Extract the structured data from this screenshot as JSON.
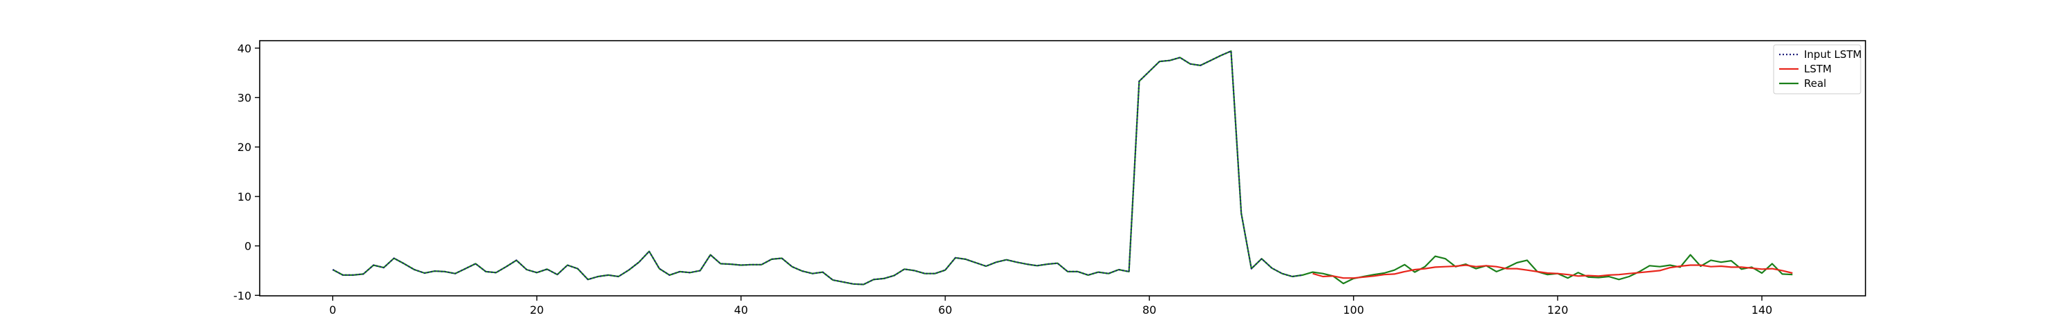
{
  "chart_data": {
    "type": "line",
    "title": "",
    "xlabel": "",
    "ylabel": "",
    "xlim": [
      -7.15,
      150.15
    ],
    "ylim": [
      -10.1,
      41.5
    ],
    "xticks": [
      0,
      20,
      40,
      60,
      80,
      100,
      120,
      140
    ],
    "yticks": [
      -10,
      0,
      10,
      20,
      30,
      40
    ],
    "grid": false,
    "legend_position": "top-right",
    "series": [
      {
        "name": "Input LSTM",
        "color": "#1f1f7a",
        "style": "dotted",
        "x": [
          0,
          1,
          2,
          3,
          4,
          5,
          6,
          7,
          8,
          9,
          10,
          11,
          12,
          13,
          14,
          15,
          16,
          17,
          18,
          19,
          20,
          21,
          22,
          23,
          24,
          25,
          26,
          27,
          28,
          29,
          30,
          31,
          32,
          33,
          34,
          35,
          36,
          37,
          38,
          39,
          40,
          41,
          42,
          43,
          44,
          45,
          46,
          47,
          48,
          49,
          50,
          51,
          52,
          53,
          54,
          55,
          56,
          57,
          58,
          59,
          60,
          61,
          62,
          63,
          64,
          65,
          66,
          67,
          68,
          69,
          70,
          71,
          72,
          73,
          74,
          75,
          76,
          77,
          78,
          79,
          80,
          81,
          82,
          83,
          84,
          85,
          86,
          87,
          88,
          89,
          90,
          91,
          92,
          93,
          94,
          95
        ],
        "y": [
          -4.8,
          -5.9,
          -5.9,
          -5.7,
          -3.9,
          -4.4,
          -2.5,
          -3.6,
          -4.8,
          -5.5,
          -5.1,
          -5.2,
          -5.6,
          -4.6,
          -3.6,
          -5.2,
          -5.4,
          -4.2,
          -2.9,
          -4.8,
          -5.4,
          -4.7,
          -5.8,
          -3.9,
          -4.6,
          -6.8,
          -6.2,
          -5.9,
          -6.2,
          -4.9,
          -3.3,
          -1.1,
          -4.6,
          -5.9,
          -5.2,
          -5.4,
          -5.0,
          -1.8,
          -3.6,
          -3.7,
          -3.9,
          -3.8,
          -3.8,
          -2.7,
          -2.5,
          -4.2,
          -5.1,
          -5.6,
          -5.3,
          -6.9,
          -7.3,
          -7.7,
          -7.8,
          -6.8,
          -6.6,
          -6.0,
          -4.7,
          -5.0,
          -5.6,
          -5.6,
          -4.9,
          -2.4,
          -2.7,
          -3.4,
          -4.1,
          -3.3,
          -2.8,
          -3.3,
          -3.7,
          -4.0,
          -3.7,
          -3.5,
          -5.2,
          -5.2,
          -5.9,
          -5.3,
          -5.6,
          -4.8,
          -5.2,
          33.3,
          35.3,
          37.3,
          37.5,
          38.1,
          36.8,
          36.5,
          37.5,
          38.5,
          39.4,
          6.6,
          -4.6,
          -2.6,
          -4.5,
          -5.6,
          -6.2,
          -5.9
        ]
      },
      {
        "name": "LSTM",
        "color": "#e8261c",
        "style": "solid",
        "x": [
          96,
          97,
          98,
          99,
          100,
          101,
          102,
          103,
          104,
          105,
          106,
          107,
          108,
          109,
          110,
          111,
          112,
          113,
          114,
          115,
          116,
          117,
          118,
          119,
          120,
          121,
          122,
          123,
          124,
          125,
          126,
          127,
          128,
          129,
          130,
          131,
          132,
          133,
          134,
          135,
          136,
          137,
          138,
          139,
          140,
          141,
          142,
          143
        ],
        "y": [
          -5.6,
          -6.2,
          -6.1,
          -6.5,
          -6.5,
          -6.3,
          -6.1,
          -5.8,
          -5.7,
          -5.2,
          -4.8,
          -4.6,
          -4.3,
          -4.2,
          -4.1,
          -3.9,
          -4.2,
          -4.0,
          -4.2,
          -4.6,
          -4.6,
          -4.9,
          -5.2,
          -5.5,
          -5.6,
          -5.8,
          -6.1,
          -6.0,
          -6.1,
          -5.9,
          -5.8,
          -5.6,
          -5.4,
          -5.2,
          -5.0,
          -4.4,
          -4.1,
          -3.9,
          -3.9,
          -4.2,
          -4.1,
          -4.3,
          -4.3,
          -4.5,
          -4.7,
          -4.6,
          -5.0,
          -5.5
        ]
      },
      {
        "name": "Real",
        "color": "#1a7f1a",
        "style": "solid",
        "x": [
          0,
          1,
          2,
          3,
          4,
          5,
          6,
          7,
          8,
          9,
          10,
          11,
          12,
          13,
          14,
          15,
          16,
          17,
          18,
          19,
          20,
          21,
          22,
          23,
          24,
          25,
          26,
          27,
          28,
          29,
          30,
          31,
          32,
          33,
          34,
          35,
          36,
          37,
          38,
          39,
          40,
          41,
          42,
          43,
          44,
          45,
          46,
          47,
          48,
          49,
          50,
          51,
          52,
          53,
          54,
          55,
          56,
          57,
          58,
          59,
          60,
          61,
          62,
          63,
          64,
          65,
          66,
          67,
          68,
          69,
          70,
          71,
          72,
          73,
          74,
          75,
          76,
          77,
          78,
          79,
          80,
          81,
          82,
          83,
          84,
          85,
          86,
          87,
          88,
          89,
          90,
          91,
          92,
          93,
          94,
          95,
          96,
          97,
          98,
          99,
          100,
          101,
          102,
          103,
          104,
          105,
          106,
          107,
          108,
          109,
          110,
          111,
          112,
          113,
          114,
          115,
          116,
          117,
          118,
          119,
          120,
          121,
          122,
          123,
          124,
          125,
          126,
          127,
          128,
          129,
          130,
          131,
          132,
          133,
          134,
          135,
          136,
          137,
          138,
          139,
          140,
          141,
          142,
          143
        ],
        "y": [
          -4.8,
          -5.9,
          -5.9,
          -5.7,
          -3.9,
          -4.4,
          -2.5,
          -3.6,
          -4.8,
          -5.5,
          -5.1,
          -5.2,
          -5.6,
          -4.6,
          -3.6,
          -5.2,
          -5.4,
          -4.2,
          -2.9,
          -4.8,
          -5.4,
          -4.7,
          -5.8,
          -3.9,
          -4.6,
          -6.8,
          -6.2,
          -5.9,
          -6.2,
          -4.9,
          -3.3,
          -1.1,
          -4.6,
          -5.9,
          -5.2,
          -5.4,
          -5.0,
          -1.8,
          -3.6,
          -3.7,
          -3.9,
          -3.8,
          -3.8,
          -2.7,
          -2.5,
          -4.2,
          -5.1,
          -5.6,
          -5.3,
          -6.9,
          -7.3,
          -7.7,
          -7.8,
          -6.8,
          -6.6,
          -6.0,
          -4.7,
          -5.0,
          -5.6,
          -5.6,
          -4.9,
          -2.4,
          -2.7,
          -3.4,
          -4.1,
          -3.3,
          -2.8,
          -3.3,
          -3.7,
          -4.0,
          -3.7,
          -3.5,
          -5.2,
          -5.2,
          -5.9,
          -5.3,
          -5.6,
          -4.8,
          -5.2,
          33.3,
          35.3,
          37.3,
          37.5,
          38.1,
          36.8,
          36.5,
          37.5,
          38.5,
          39.4,
          6.6,
          -4.6,
          -2.6,
          -4.5,
          -5.6,
          -6.2,
          -5.9,
          -5.3,
          -5.6,
          -6.1,
          -7.6,
          -6.6,
          -6.2,
          -5.8,
          -5.5,
          -4.9,
          -3.8,
          -5.3,
          -4.2,
          -2.1,
          -2.6,
          -4.2,
          -3.7,
          -4.6,
          -4.0,
          -5.2,
          -4.4,
          -3.4,
          -2.9,
          -5.2,
          -5.8,
          -5.6,
          -6.5,
          -5.4,
          -6.3,
          -6.4,
          -6.2,
          -6.8,
          -6.2,
          -5.2,
          -4.0,
          -4.2,
          -3.9,
          -4.3,
          -1.8,
          -4.1,
          -2.9,
          -3.3,
          -3.0,
          -4.7,
          -4.3,
          -5.5,
          -3.6,
          -5.7,
          -5.8
        ]
      }
    ]
  }
}
